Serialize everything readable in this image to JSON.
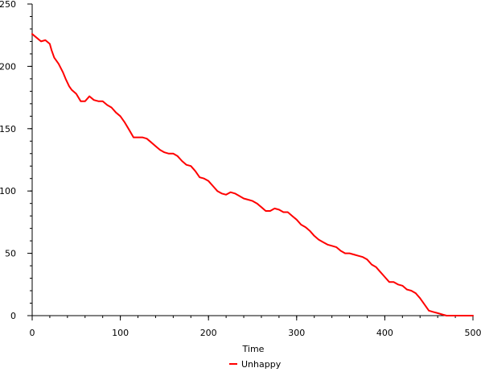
{
  "chart_data": {
    "type": "line",
    "xlabel": "Time",
    "ylabel": "",
    "xlim": [
      0,
      500
    ],
    "ylim": [
      0,
      250
    ],
    "x_ticks": [
      "0",
      "100",
      "200",
      "300",
      "400",
      "500"
    ],
    "y_ticks": [
      "0",
      "50",
      "100",
      "150",
      "200",
      "250"
    ],
    "grid": false,
    "legend_position": "bottom",
    "series": [
      {
        "name": "Unhappy",
        "color": "#ff0000",
        "x": [
          0,
          5,
          10,
          15,
          20,
          22,
          25,
          30,
          35,
          38,
          42,
          45,
          50,
          55,
          60,
          65,
          70,
          75,
          80,
          85,
          90,
          95,
          100,
          105,
          110,
          115,
          120,
          125,
          130,
          135,
          140,
          145,
          150,
          155,
          160,
          165,
          170,
          175,
          180,
          185,
          190,
          195,
          200,
          205,
          210,
          215,
          220,
          225,
          230,
          235,
          240,
          245,
          250,
          255,
          260,
          265,
          270,
          275,
          280,
          285,
          290,
          295,
          300,
          305,
          310,
          315,
          320,
          325,
          330,
          335,
          340,
          345,
          350,
          355,
          360,
          365,
          370,
          375,
          380,
          385,
          390,
          395,
          400,
          405,
          410,
          415,
          420,
          425,
          430,
          435,
          440,
          445,
          450,
          455,
          460,
          465,
          470,
          475,
          480,
          485,
          490,
          495,
          500
        ],
        "y": [
          226,
          223,
          220,
          221,
          218,
          213,
          207,
          202,
          195,
          190,
          184,
          181,
          178,
          172,
          172,
          176,
          173,
          172,
          172,
          169,
          167,
          163,
          160,
          155,
          149,
          143,
          143,
          143,
          142,
          139,
          136,
          133,
          131,
          130,
          130,
          128,
          124,
          121,
          120,
          116,
          111,
          110,
          108,
          104,
          100,
          98,
          97,
          99,
          98,
          96,
          94,
          93,
          92,
          90,
          87,
          84,
          84,
          86,
          85,
          83,
          83,
          80,
          77,
          73,
          71,
          68,
          64,
          61,
          59,
          57,
          56,
          55,
          52,
          50,
          50,
          49,
          48,
          47,
          45,
          41,
          39,
          35,
          31,
          27,
          27,
          25,
          24,
          21,
          20,
          18,
          14,
          9,
          4,
          3,
          2,
          1,
          0,
          0,
          0,
          0,
          0,
          0,
          0
        ]
      }
    ]
  }
}
